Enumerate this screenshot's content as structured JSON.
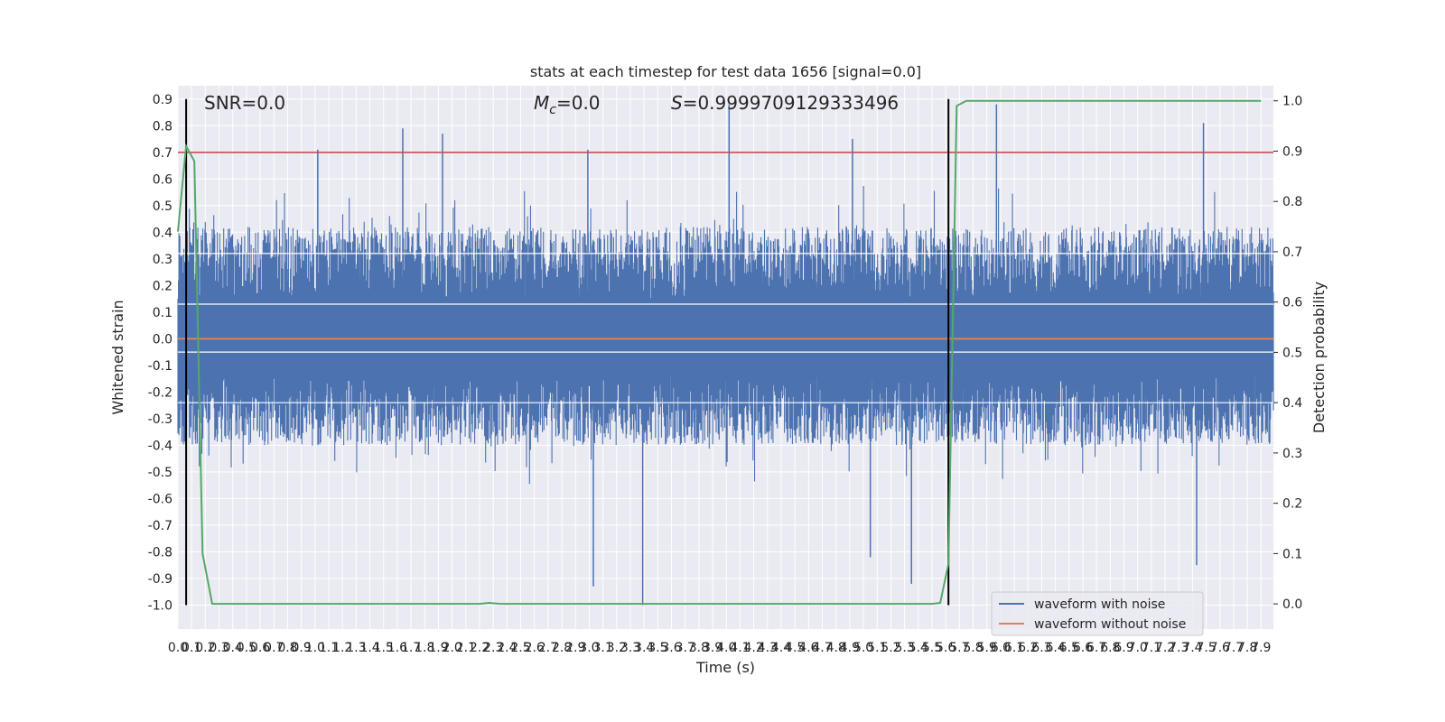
{
  "chart_data": {
    "type": "line",
    "title": "stats at each timestep for test data 1656 [signal=0.0]",
    "xlabel": "Time (s)",
    "ylabel_left": "Whitened strain",
    "ylabel_right": "Detection probability",
    "xlim": [
      0.0,
      7.99
    ],
    "ylim_left": [
      -1.09,
      0.95
    ],
    "ylim_right": [
      -0.05,
      1.03
    ],
    "x_ticks": [
      "0.0",
      "0.1",
      "0.2",
      "0.3",
      "0.4",
      "0.5",
      "0.6",
      "0.7",
      "0.8",
      "0.9",
      "1.0",
      "1.1",
      "1.2",
      "1.3",
      "1.4",
      "1.5",
      "1.6",
      "1.7",
      "1.8",
      "1.9",
      "2.0",
      "2.1",
      "2.2",
      "2.3",
      "2.4",
      "2.5",
      "2.6",
      "2.7",
      "2.8",
      "2.9",
      "3.0",
      "3.1",
      "3.2",
      "3.3",
      "3.4",
      "3.5",
      "3.6",
      "3.7",
      "3.8",
      "3.9",
      "4.0",
      "4.1",
      "4.2",
      "4.3",
      "4.4",
      "4.5",
      "4.6",
      "4.7",
      "4.8",
      "4.9",
      "5.0",
      "5.1",
      "5.2",
      "5.3",
      "5.4",
      "5.5",
      "5.6",
      "5.7",
      "5.8",
      "5.9",
      "6.0",
      "6.1",
      "6.2",
      "6.3",
      "6.4",
      "6.5",
      "6.6",
      "6.7",
      "6.8",
      "6.9",
      "7.0",
      "7.1",
      "7.2",
      "7.3",
      "7.4",
      "7.5",
      "7.6",
      "7.7",
      "7.8",
      "7.9"
    ],
    "y_ticks_left": [
      "0.9",
      "0.8",
      "0.7",
      "0.6",
      "0.5",
      "0.4",
      "0.3",
      "0.2",
      "0.1",
      "0.0",
      "-0.1",
      "-0.2",
      "-0.3",
      "-0.4",
      "-0.5",
      "-0.6",
      "-0.7",
      "-0.8",
      "-0.9",
      "-1.0"
    ],
    "y_ticks_left_values": [
      0.9,
      0.8,
      0.7,
      0.6,
      0.5,
      0.4,
      0.3,
      0.2,
      0.1,
      0.0,
      -0.1,
      -0.2,
      -0.3,
      -0.4,
      -0.5,
      -0.6,
      -0.7,
      -0.8,
      -0.9,
      -1.0
    ],
    "y_ticks_right": [
      "1.0",
      "0.9",
      "0.8",
      "0.7",
      "0.6",
      "0.5",
      "0.4",
      "0.3",
      "0.2",
      "0.1",
      "0.0"
    ],
    "y_ticks_right_values": [
      1.0,
      0.9,
      0.8,
      0.7,
      0.6,
      0.5,
      0.4,
      0.3,
      0.2,
      0.1,
      0.0
    ],
    "grid": true,
    "annotations": {
      "snr": "SNR=0.0",
      "mc_symbol": "M",
      "mc_sub": "c",
      "mc_value": "=0.0",
      "s_symbol": "S",
      "s_value": "=0.9999709129333496"
    },
    "series": [
      {
        "name": "waveform with noise",
        "color": "#4c72b0",
        "typical_range": [
          -0.4,
          0.42
        ],
        "peaks": [
          {
            "x": 1.02,
            "y": 0.71
          },
          {
            "x": 1.64,
            "y": 0.79
          },
          {
            "x": 1.93,
            "y": 0.77
          },
          {
            "x": 2.99,
            "y": 0.71
          },
          {
            "x": 3.39,
            "y": -1.0
          },
          {
            "x": 3.03,
            "y": -0.93
          },
          {
            "x": 4.02,
            "y": 0.88
          },
          {
            "x": 4.92,
            "y": 0.75
          },
          {
            "x": 5.05,
            "y": -0.82
          },
          {
            "x": 5.35,
            "y": -0.92
          },
          {
            "x": 5.97,
            "y": 0.88
          },
          {
            "x": 7.43,
            "y": -0.85
          },
          {
            "x": 7.48,
            "y": 0.81
          }
        ]
      },
      {
        "name": "waveform without noise",
        "color": "#dd8452",
        "constant": 0.0
      },
      {
        "name": "detection probability",
        "color": "#55a868",
        "axis": "right",
        "x": [
          0.0,
          0.06,
          0.12,
          0.18,
          0.25,
          2.2,
          2.27,
          2.35,
          5.5,
          5.56,
          5.62,
          5.68,
          5.75,
          7.9
        ],
        "y": [
          0.74,
          0.91,
          0.88,
          0.1,
          0.0,
          0.0,
          0.002,
          0.0,
          0.0,
          0.002,
          0.08,
          0.99,
          1.0,
          1.0
        ]
      }
    ],
    "hlines": [
      {
        "axis": "left",
        "y": 0.7,
        "color": "#c44e52"
      }
    ],
    "vlines": [
      {
        "x": 0.06,
        "y_range": [
          -1.0,
          0.9
        ],
        "color": "#000000"
      },
      {
        "x": 5.62,
        "y_range": [
          -1.0,
          0.9
        ],
        "color": "#000000"
      }
    ],
    "legend": {
      "placement": "lower right",
      "items": [
        {
          "label": "waveform with noise",
          "color": "#4c72b0"
        },
        {
          "label": "waveform without noise",
          "color": "#dd8452"
        }
      ]
    }
  }
}
